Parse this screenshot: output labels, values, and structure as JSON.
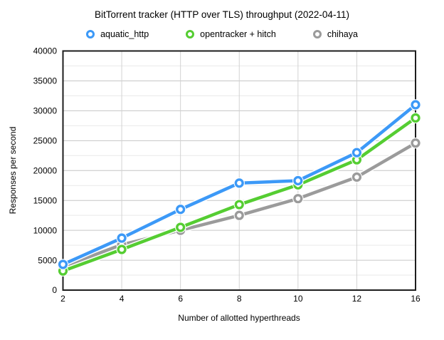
{
  "chart_data": {
    "type": "line",
    "title": "BitTorrent tracker (HTTP over TLS) throughput (2022-04-11)",
    "xlabel": "Number of allotted hyperthreads",
    "ylabel": "Responses per second",
    "x_categories": [
      "2",
      "4",
      "6",
      "8",
      "10",
      "12",
      "16"
    ],
    "y_ticks": [
      0,
      5000,
      10000,
      15000,
      20000,
      25000,
      30000,
      35000,
      40000
    ],
    "y_minor_step": 2500,
    "ylim": [
      0,
      40000
    ],
    "grid": true,
    "legend_position": "top",
    "marker_style": "open-circle",
    "series": [
      {
        "name": "aquatic_http",
        "color": "#3C99F7",
        "values": [
          4300,
          8700,
          13500,
          17900,
          18300,
          23000,
          31000
        ]
      },
      {
        "name": "opentracker + hitch",
        "color": "#55CD32",
        "values": [
          3200,
          6800,
          10500,
          14300,
          17600,
          21800,
          28800
        ]
      },
      {
        "name": "chihaya",
        "color": "#9B9B9B",
        "values": [
          3900,
          7600,
          10000,
          12500,
          15300,
          18900,
          24600
        ]
      }
    ]
  },
  "colors": {
    "background": "#ffffff",
    "plot_border": "#1d1d1d",
    "grid_major": "#c6c6c6",
    "grid_minor": "#e9e9e9",
    "grid_vertical": "#d2d2d2",
    "text": "#000000"
  }
}
